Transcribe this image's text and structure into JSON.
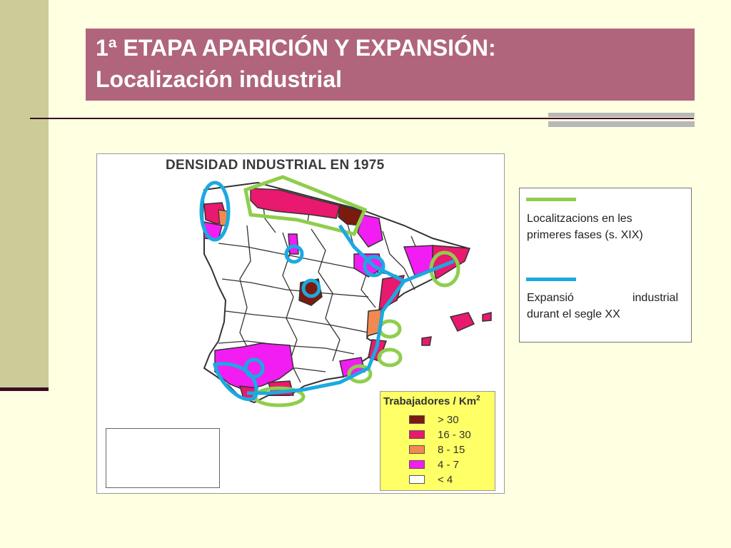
{
  "slide": {
    "title_line1": "1ª ETAPA APARICIÓN Y EXPANSIÓN:",
    "title_line2": "Localización industrial"
  },
  "colors": {
    "background": "#ffffe1",
    "side_bar": "#cccc99",
    "title_bg": "#b0657d",
    "early_phase_line": "#8fce4d",
    "expansion_line": "#1ba9e1"
  },
  "map": {
    "title": "DENSIDAD INDUSTRIAL EN 1975",
    "legend_title": "Trabajadores / Km",
    "legend_title_superscript": "2",
    "legend": [
      {
        "label": "> 30",
        "color": "#7b1a0e"
      },
      {
        "label": "16 - 30",
        "color": "#e8196e"
      },
      {
        "label": "8 - 15",
        "color": "#f28a50"
      },
      {
        "label": "4 - 7",
        "color": "#f21df2"
      },
      {
        "label": "< 4",
        "color": "#ffffff"
      }
    ]
  },
  "key": {
    "early_label": "Localitzacions en les primeres fases (s. XIX)",
    "expansion_label_word1": "Expansió",
    "expansion_label_word2": "industrial",
    "expansion_label_line2": "durant el segle XX"
  }
}
